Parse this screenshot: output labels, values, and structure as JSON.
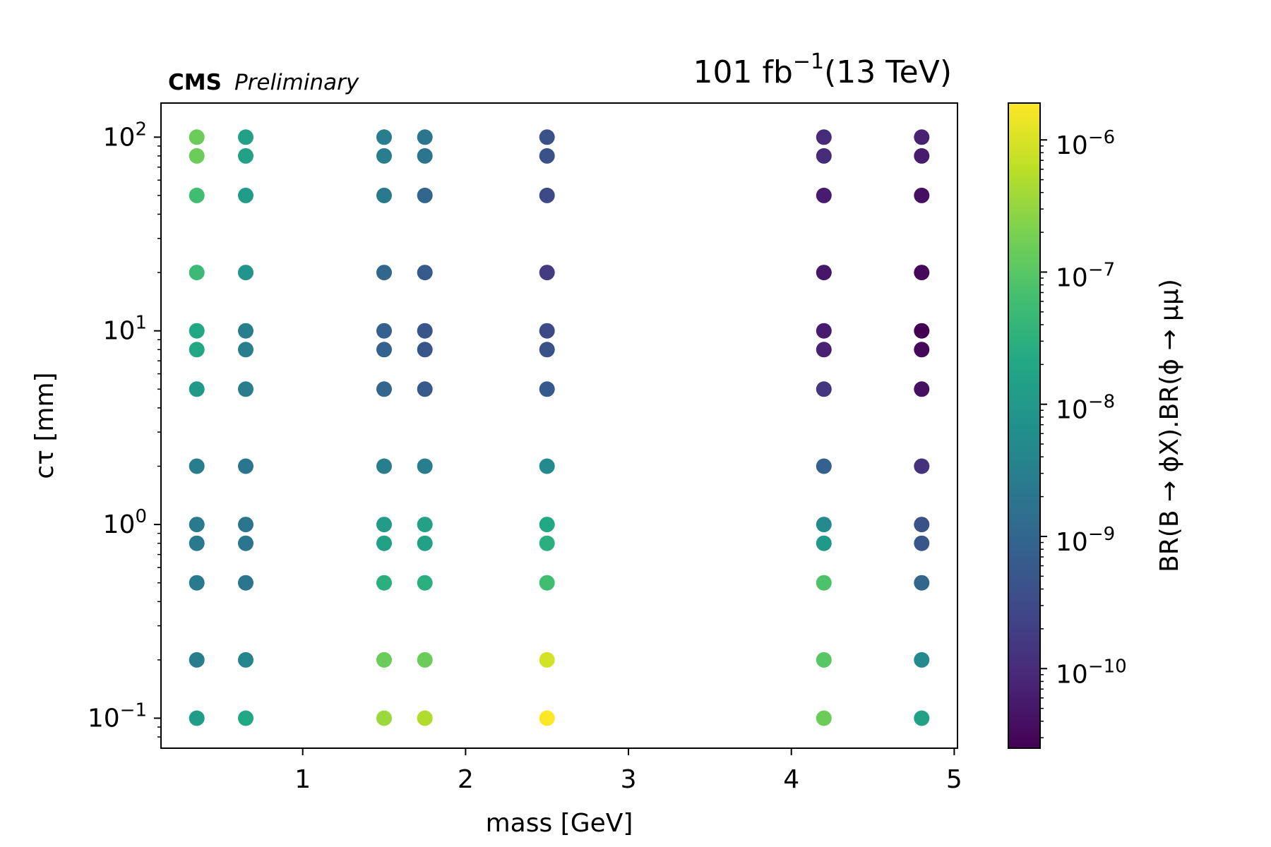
{
  "chart_data": {
    "type": "scatter",
    "experiment_label": "CMS",
    "status_label": "Preliminary",
    "lumi_label": {
      "value": "101 fb",
      "exp": "−1",
      "energy": "(13 TeV)"
    },
    "xlabel": "mass [GeV]",
    "ylabel": "cτ [mm]",
    "colorbar_label": "BR(B → ϕX).BR(ϕ → μμ)",
    "x_scale": "linear",
    "y_scale": "log",
    "xlim": [
      0.13,
      5.02
    ],
    "ylim": [
      0.07,
      150
    ],
    "x_ticks": [
      {
        "value": 1,
        "label": "1"
      },
      {
        "value": 2,
        "label": "2"
      },
      {
        "value": 3,
        "label": "3"
      },
      {
        "value": 4,
        "label": "4"
      },
      {
        "value": 5,
        "label": "5"
      }
    ],
    "y_ticks": [
      {
        "value": 0.1,
        "base": "10",
        "exp": "−1"
      },
      {
        "value": 1,
        "base": "10",
        "exp": "0"
      },
      {
        "value": 10,
        "base": "10",
        "exp": "1"
      },
      {
        "value": 100,
        "base": "10",
        "exp": "2"
      }
    ],
    "colorbar": {
      "colormap": "viridis",
      "scale": "log",
      "range": [
        2.5e-11,
        1.9e-06
      ],
      "ticks": [
        {
          "value": 1e-10,
          "base": "10",
          "exp": "−10"
        },
        {
          "value": 1e-09,
          "base": "10",
          "exp": "−9"
        },
        {
          "value": 1e-08,
          "base": "10",
          "exp": "−8"
        },
        {
          "value": 1e-07,
          "base": "10",
          "exp": "−7"
        },
        {
          "value": 1e-06,
          "base": "10",
          "exp": "−6"
        }
      ]
    },
    "ctau_values": [
      100,
      80,
      50,
      20,
      10,
      8,
      5,
      2,
      1,
      0.8,
      0.5,
      0.2,
      0.1
    ],
    "series": [
      {
        "mass": 0.35,
        "br": [
          1.5e-07,
          1.5e-07,
          6e-08,
          5e-08,
          2e-08,
          2e-08,
          1e-08,
          3e-09,
          2.5e-09,
          2.5e-09,
          2.5e-09,
          3e-09,
          1.2e-08
        ]
      },
      {
        "mass": 0.65,
        "br": [
          1.5e-08,
          1.5e-08,
          1.2e-08,
          8e-09,
          3e-09,
          3e-09,
          3e-09,
          2e-09,
          2e-09,
          2e-09,
          2e-09,
          4e-09,
          2e-08
        ]
      },
      {
        "mass": 1.5,
        "br": [
          3e-09,
          3e-09,
          2.5e-09,
          1e-09,
          8e-10,
          8e-10,
          1e-09,
          3e-09,
          1.2e-08,
          1.5e-08,
          3e-08,
          1.5e-07,
          3.5e-07
        ]
      },
      {
        "mass": 1.75,
        "br": [
          2e-09,
          2e-09,
          1e-09,
          6e-10,
          5e-10,
          5e-10,
          6e-10,
          3e-09,
          1.5e-08,
          1.5e-08,
          3e-08,
          1.5e-07,
          5e-07
        ]
      },
      {
        "mass": 2.5,
        "br": [
          4e-10,
          4e-10,
          3e-10,
          1.8e-10,
          3e-10,
          4e-10,
          6e-10,
          5e-09,
          2e-08,
          3e-08,
          6e-08,
          9e-07,
          1.8e-06
        ]
      },
      {
        "mass": 4.2,
        "br": [
          1e-10,
          1e-10,
          6e-11,
          5e-11,
          6e-11,
          7e-11,
          1.5e-10,
          8e-10,
          5e-09,
          1e-08,
          8e-08,
          1e-07,
          1.5e-07
        ]
      },
      {
        "mass": 4.8,
        "br": [
          7e-11,
          6e-11,
          4e-11,
          3e-11,
          2.5e-11,
          3e-11,
          4e-11,
          1.2e-10,
          4e-10,
          5e-10,
          1e-09,
          5e-09,
          1.5e-08
        ]
      }
    ]
  }
}
